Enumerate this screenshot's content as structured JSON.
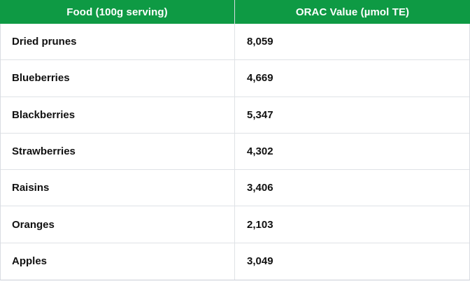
{
  "colors": {
    "header_bg": "#0e9a44",
    "header_text": "#ffffff",
    "cell_text": "#111111",
    "row_border": "#dfe2e6",
    "outer_border": "#c9ced6",
    "divider": "#d9dce2",
    "page_bg": "#ffffff"
  },
  "table": {
    "columns": [
      {
        "label": "Food (100g serving)"
      },
      {
        "label": "ORAC Value (µmol TE)"
      }
    ],
    "rows": [
      {
        "food": "Dried prunes",
        "orac": "8,059"
      },
      {
        "food": "Blueberries",
        "orac": "4,669"
      },
      {
        "food": "Blackberries",
        "orac": "5,347"
      },
      {
        "food": "Strawberries",
        "orac": "4,302"
      },
      {
        "food": "Raisins",
        "orac": "3,406"
      },
      {
        "food": "Oranges",
        "orac": "2,103"
      },
      {
        "food": "Apples",
        "orac": "3,049"
      }
    ]
  },
  "chart_data": {
    "type": "table",
    "title": "",
    "columns": [
      "Food (100g serving)",
      "ORAC Value (µmol TE)"
    ],
    "categories": [
      "Dried prunes",
      "Blueberries",
      "Blackberries",
      "Strawberries",
      "Raisins",
      "Oranges",
      "Apples"
    ],
    "values": [
      8059,
      4669,
      5347,
      4302,
      3406,
      2103,
      3049
    ],
    "value_unit": "µmol TE",
    "serving": "100g"
  }
}
